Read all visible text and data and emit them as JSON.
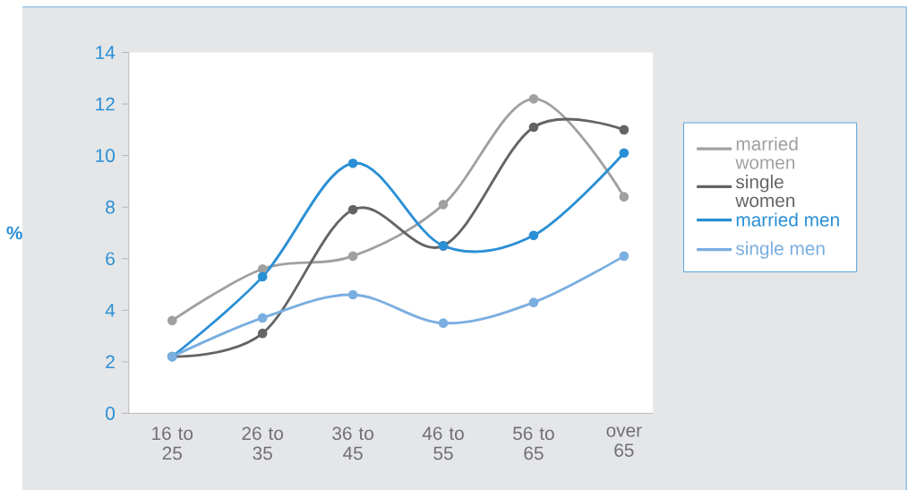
{
  "chart_data": {
    "type": "line",
    "ylabel": "%",
    "categories": [
      "16 to 25",
      "26 to 35",
      "36 to 45",
      "46 to 55",
      "56 to 65",
      "over 65"
    ],
    "ylim": [
      0,
      14
    ],
    "yticks": [
      0,
      2,
      4,
      6,
      8,
      10,
      12,
      14
    ],
    "marker": "circle",
    "legend": "right",
    "grid": false,
    "series": [
      {
        "name": "married women",
        "color": "#a0a0a2",
        "values": [
          3.6,
          5.6,
          6.1,
          8.1,
          12.2,
          8.4
        ]
      },
      {
        "name": "single women",
        "color": "#636466",
        "values": [
          2.2,
          3.1,
          7.9,
          6.5,
          11.1,
          11.0
        ]
      },
      {
        "name": "married men",
        "color": "#2a8fd4",
        "values": [
          2.2,
          5.3,
          9.7,
          6.5,
          6.9,
          10.1
        ]
      },
      {
        "name": "single men",
        "color": "#7aaee0",
        "values": [
          2.2,
          3.7,
          4.6,
          3.5,
          4.3,
          6.1
        ]
      }
    ]
  }
}
